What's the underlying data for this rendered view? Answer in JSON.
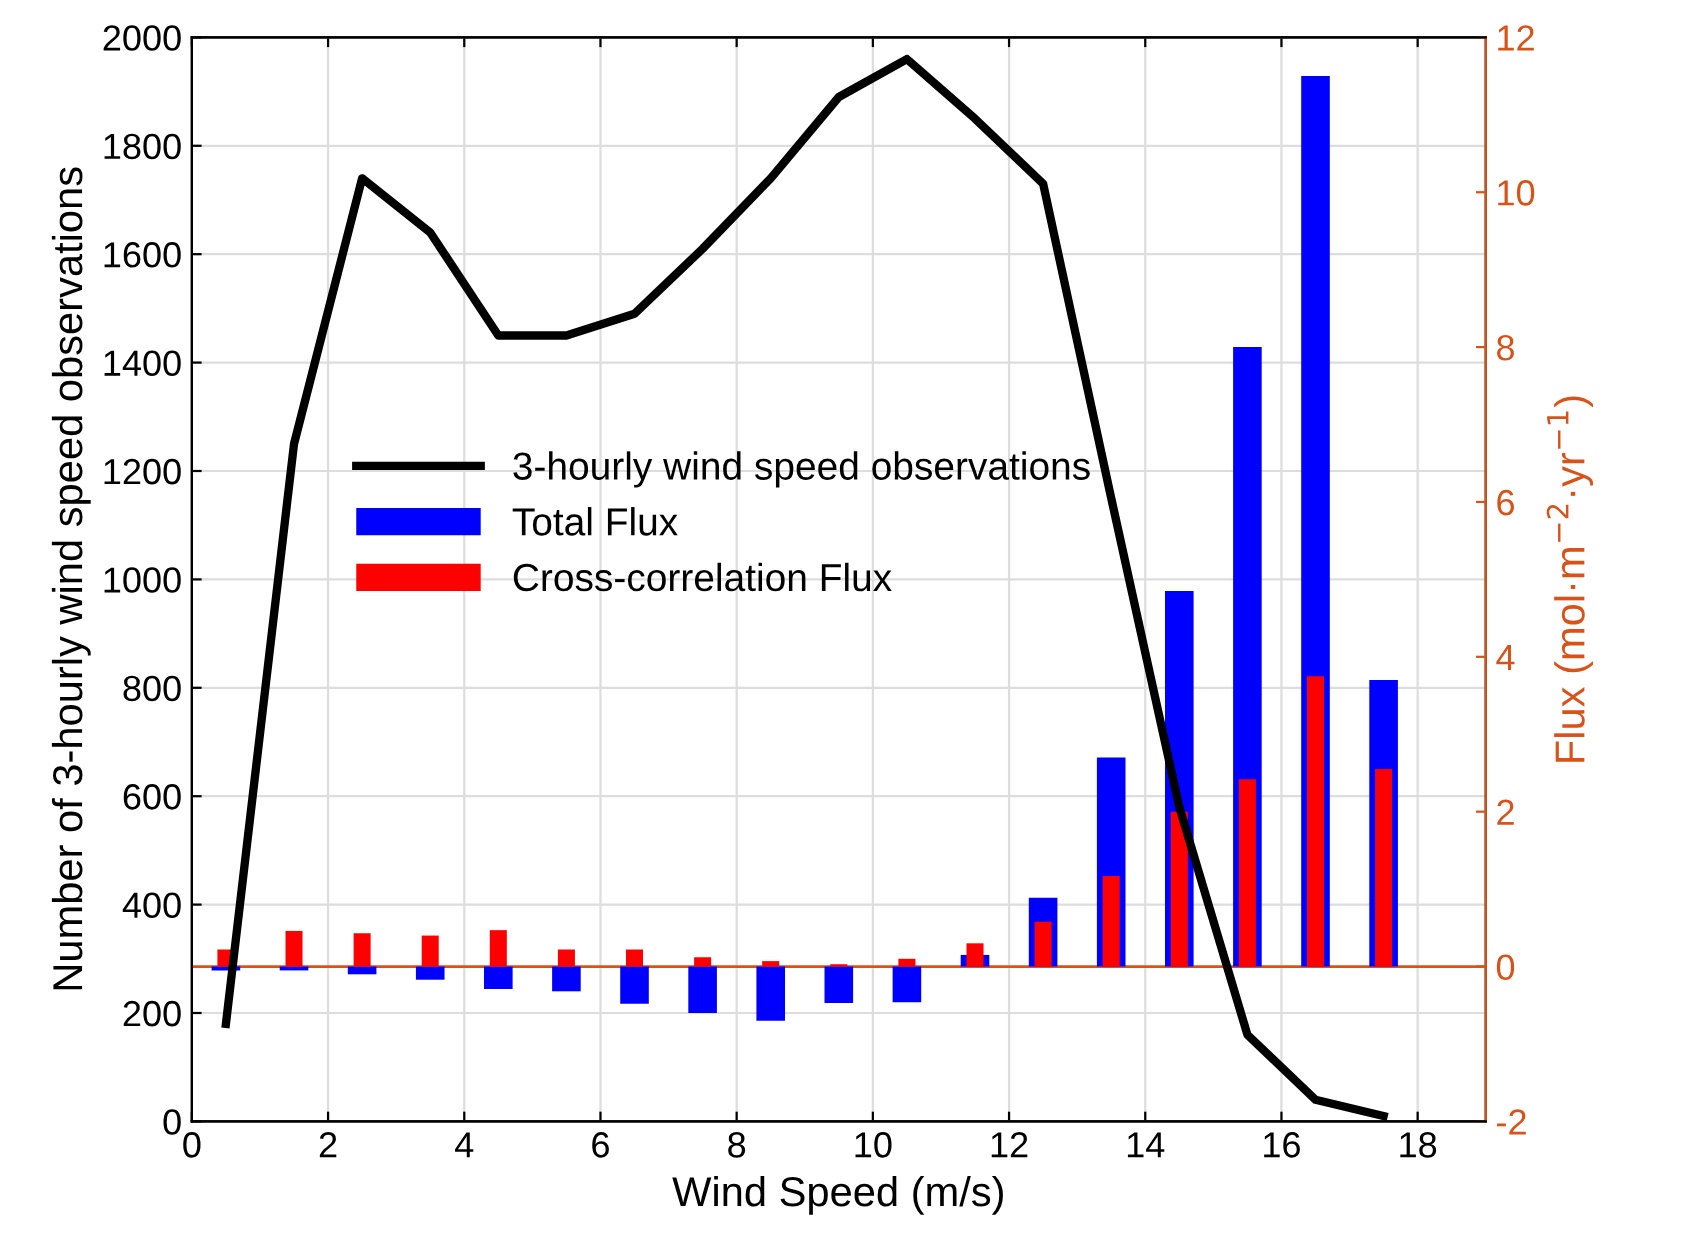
{
  "chart_data": {
    "type": "bar",
    "xlabel": "Wind Speed (m/s)",
    "ylabel": "Number of 3-hourly wind speed observations",
    "y2label": "Flux (mol·m$^{−2}$·yr$^{−1}$)",
    "x": [
      0.5,
      1.5,
      2.5,
      3.5,
      4.5,
      5.5,
      6.5,
      7.5,
      8.5,
      9.5,
      10.5,
      11.5,
      12.5,
      13.5,
      14.5,
      15.5,
      16.5,
      17.5
    ],
    "series": [
      {
        "name": "3-hourly wind speed observations",
        "type": "line",
        "axis": "y",
        "color": "#000000",
        "values": [
          180,
          1250,
          1740,
          1640,
          1450,
          1450,
          1490,
          1610,
          1740,
          1890,
          1960,
          1850,
          1730,
          1150,
          580,
          160,
          40,
          10
        ]
      },
      {
        "name": "Total Flux",
        "axis": "y2",
        "color": "#0000ff",
        "values": [
          -0.05,
          -0.05,
          -0.1,
          -0.17,
          -0.29,
          -0.32,
          -0.48,
          -0.6,
          -0.7,
          -0.47,
          -0.46,
          0.15,
          0.89,
          2.7,
          4.85,
          8.0,
          11.5,
          3.7
        ]
      },
      {
        "name": "Cross-correlation Flux",
        "axis": "y2",
        "color": "#ff0000",
        "values": [
          0.22,
          0.46,
          0.43,
          0.4,
          0.47,
          0.22,
          0.22,
          0.12,
          0.07,
          0.03,
          0.1,
          0.3,
          0.58,
          1.17,
          2.0,
          2.42,
          3.75,
          2.55
        ]
      }
    ],
    "xlim": [
      0,
      19
    ],
    "xticks": [
      0,
      2,
      4,
      6,
      8,
      10,
      12,
      14,
      16,
      18
    ],
    "ylim": [
      0,
      2000
    ],
    "yticks": [
      0,
      200,
      400,
      600,
      800,
      1000,
      1200,
      1400,
      1600,
      1800,
      2000
    ],
    "y2lim": [
      -2,
      12
    ],
    "y2ticks": [
      -2,
      0,
      2,
      4,
      6,
      8,
      10,
      12
    ],
    "ref_lines": [
      {
        "axis": "y2",
        "value": 0,
        "color": "#d95319",
        "line_style": "solid"
      }
    ],
    "grid": true,
    "legend": "center left",
    "marker": "none",
    "line_style": "solid"
  }
}
